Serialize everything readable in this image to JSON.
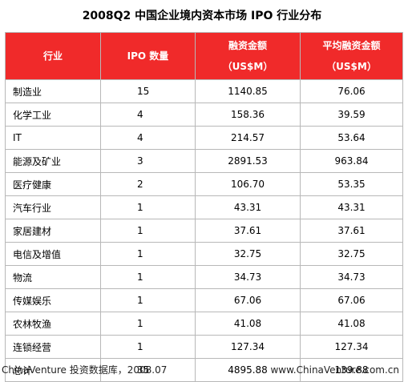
{
  "title": "2008Q2 中国企业境内资本市场 IPO 行业分布",
  "colors": {
    "header_bg": "#f02a2a",
    "header_text": "#ffffff",
    "grid": "#b8b8b8"
  },
  "table": {
    "headers": {
      "industry": "行业",
      "ipo_count": "IPO 数量",
      "financing_line1": "融资金额",
      "financing_line2": "（US$M）",
      "avg_line1": "平均融资金额",
      "avg_line2": "（US$M）"
    },
    "rows": [
      {
        "industry": "制造业",
        "count": "15",
        "amount": "1140.85",
        "average": "76.06"
      },
      {
        "industry": "化学工业",
        "count": "4",
        "amount": "158.36",
        "average": "39.59"
      },
      {
        "industry": "IT",
        "count": "4",
        "amount": "214.57",
        "average": "53.64"
      },
      {
        "industry": "能源及矿业",
        "count": "3",
        "amount": "2891.53",
        "average": "963.84"
      },
      {
        "industry": "医疗健康",
        "count": "2",
        "amount": "106.70",
        "average": "53.35"
      },
      {
        "industry": "汽车行业",
        "count": "1",
        "amount": "43.31",
        "average": "43.31"
      },
      {
        "industry": "家居建材",
        "count": "1",
        "amount": "37.61",
        "average": "37.61"
      },
      {
        "industry": "电信及增值",
        "count": "1",
        "amount": "32.75",
        "average": "32.75"
      },
      {
        "industry": "物流",
        "count": "1",
        "amount": "34.73",
        "average": "34.73"
      },
      {
        "industry": "传媒娱乐",
        "count": "1",
        "amount": "67.06",
        "average": "67.06"
      },
      {
        "industry": "农林牧渔",
        "count": "1",
        "amount": "41.08",
        "average": "41.08"
      },
      {
        "industry": "连锁经营",
        "count": "1",
        "amount": "127.34",
        "average": "127.34"
      },
      {
        "industry": "总计",
        "count": "35",
        "amount": "4895.88",
        "average": "139.88"
      }
    ]
  },
  "footer": {
    "source": "ChinaVenture 投资数据库，2008.07",
    "website": "www.ChinaVenture.com.cn"
  }
}
